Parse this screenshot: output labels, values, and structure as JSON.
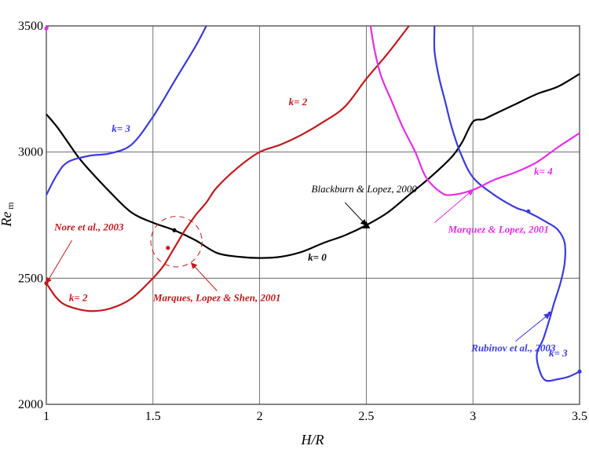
{
  "chart_data": {
    "type": "line",
    "xlabel": "H/R",
    "ylabel": "Re",
    "ylabel_sub": "m",
    "xlim": [
      1,
      3.5
    ],
    "ylim": [
      2000,
      3500
    ],
    "xticks": [
      "1",
      "1.5",
      "2",
      "2.5",
      "3",
      "3.5"
    ],
    "yticks": [
      "2000",
      "2500",
      "3000",
      "3500"
    ],
    "grid": true,
    "series": [
      {
        "name": "k=0",
        "color": "#000000",
        "points": [
          [
            1.0,
            3150
          ],
          [
            1.05,
            3100
          ],
          [
            1.1,
            3040
          ],
          [
            1.15,
            2980
          ],
          [
            1.2,
            2930
          ],
          [
            1.3,
            2840
          ],
          [
            1.4,
            2760
          ],
          [
            1.5,
            2720
          ],
          [
            1.6,
            2690
          ],
          [
            1.7,
            2650
          ],
          [
            1.8,
            2600
          ],
          [
            1.9,
            2585
          ],
          [
            2.0,
            2580
          ],
          [
            2.1,
            2585
          ],
          [
            2.2,
            2605
          ],
          [
            2.3,
            2640
          ],
          [
            2.4,
            2670
          ],
          [
            2.5,
            2710
          ],
          [
            2.6,
            2760
          ],
          [
            2.7,
            2830
          ],
          [
            2.8,
            2900
          ],
          [
            2.9,
            2980
          ],
          [
            2.95,
            3040
          ],
          [
            3.0,
            3120
          ],
          [
            3.05,
            3130
          ],
          [
            3.1,
            3150
          ],
          [
            3.2,
            3190
          ],
          [
            3.3,
            3230
          ],
          [
            3.4,
            3260
          ],
          [
            3.5,
            3310
          ]
        ]
      },
      {
        "name": "k=2",
        "color": "#c0191c",
        "points": [
          [
            1.0,
            2480
          ],
          [
            1.05,
            2420
          ],
          [
            1.1,
            2390
          ],
          [
            1.2,
            2370
          ],
          [
            1.3,
            2380
          ],
          [
            1.4,
            2420
          ],
          [
            1.5,
            2500
          ],
          [
            1.55,
            2550
          ],
          [
            1.6,
            2620
          ],
          [
            1.65,
            2690
          ],
          [
            1.7,
            2750
          ],
          [
            1.75,
            2800
          ],
          [
            1.8,
            2860
          ],
          [
            1.9,
            2940
          ],
          [
            2.0,
            3000
          ],
          [
            2.1,
            3030
          ],
          [
            2.2,
            3070
          ],
          [
            2.3,
            3120
          ],
          [
            2.4,
            3180
          ],
          [
            2.5,
            3290
          ],
          [
            2.6,
            3390
          ],
          [
            2.7,
            3500
          ]
        ]
      },
      {
        "name": "k=3",
        "color": "#3b3bdc",
        "points": [
          [
            1.0,
            2830
          ],
          [
            1.05,
            2910
          ],
          [
            1.1,
            2960
          ],
          [
            1.2,
            2985
          ],
          [
            1.3,
            2995
          ],
          [
            1.4,
            3030
          ],
          [
            1.5,
            3140
          ],
          [
            1.6,
            3280
          ],
          [
            1.7,
            3420
          ],
          [
            1.75,
            3500
          ]
        ]
      },
      {
        "name": "k=3",
        "color": "#3b3bdc",
        "points": [
          [
            2.82,
            3500
          ],
          [
            2.82,
            3400
          ],
          [
            2.84,
            3300
          ],
          [
            2.87,
            3200
          ],
          [
            2.9,
            3100
          ],
          [
            2.94,
            3000
          ],
          [
            3.0,
            2900
          ],
          [
            3.1,
            2830
          ],
          [
            3.2,
            2780
          ],
          [
            3.25,
            2765
          ],
          [
            3.35,
            2720
          ],
          [
            3.4,
            2690
          ],
          [
            3.43,
            2640
          ],
          [
            3.43,
            2560
          ],
          [
            3.41,
            2480
          ],
          [
            3.38,
            2400
          ],
          [
            3.36,
            2340
          ],
          [
            3.33,
            2260
          ],
          [
            3.3,
            2200
          ],
          [
            3.31,
            2140
          ],
          [
            3.34,
            2095
          ],
          [
            3.4,
            2100
          ],
          [
            3.45,
            2110
          ],
          [
            3.5,
            2130
          ]
        ]
      },
      {
        "name": "k=4",
        "color": "#e52ee5",
        "points": [
          [
            2.52,
            3500
          ],
          [
            2.54,
            3400
          ],
          [
            2.57,
            3300
          ],
          [
            2.62,
            3200
          ],
          [
            2.67,
            3100
          ],
          [
            2.73,
            3000
          ],
          [
            2.78,
            2900
          ],
          [
            2.85,
            2840
          ],
          [
            2.9,
            2830
          ],
          [
            3.0,
            2850
          ],
          [
            3.1,
            2890
          ],
          [
            3.2,
            2920
          ],
          [
            3.3,
            2960
          ],
          [
            3.4,
            3020
          ],
          [
            3.5,
            3075
          ]
        ]
      },
      {
        "name": "k=2",
        "color": "#e52ee5",
        "points": [
          [
            1.0,
            3490
          ],
          [
            1.01,
            3500
          ]
        ]
      }
    ],
    "markers": [
      {
        "shape": "dot",
        "x": 1.6,
        "y": 2690,
        "color": "#000000"
      },
      {
        "shape": "dot",
        "x": 1.57,
        "y": 2620,
        "color": "#c0191c"
      },
      {
        "shape": "triangle",
        "x": 2.5,
        "y": 2710,
        "color": "#000000"
      },
      {
        "shape": "dot",
        "x": 3.26,
        "y": 2765,
        "color": "#3b3bdc"
      },
      {
        "shape": "dot",
        "x": 3.36,
        "y": 2360,
        "color": "#3b3bdc"
      },
      {
        "shape": "dot",
        "x": 3.5,
        "y": 2130,
        "color": "#3b3bdc"
      },
      {
        "shape": "dot",
        "x": 1.0,
        "y": 2480,
        "color": "#c0191c"
      },
      {
        "shape": "dot",
        "x": 1.0,
        "y": 3490,
        "color": "#e52ee5"
      }
    ],
    "circle": {
      "x": 1.61,
      "y": 2645,
      "rx": 0.12,
      "ry": 100,
      "color": "#c0191c"
    },
    "annotations": [
      {
        "text": "k= 3",
        "x": 1.35,
        "y": 3080,
        "color": "#3b3bdc",
        "bold": true
      },
      {
        "text": "k= 2",
        "x": 2.18,
        "y": 3185,
        "color": "#c0191c",
        "bold": true
      },
      {
        "text": "k= 2",
        "x": 1.15,
        "y": 2410,
        "color": "#c0191c",
        "bold": true
      },
      {
        "text": "k= 0",
        "x": 2.27,
        "y": 2570,
        "color": "#000000",
        "bold": true
      },
      {
        "text": "k= 4",
        "x": 3.33,
        "y": 2910,
        "color": "#e52ee5",
        "bold": true
      },
      {
        "text": "k= 3",
        "x": 3.4,
        "y": 2190,
        "color": "#3b3bdc",
        "bold": true
      },
      {
        "text": "Blackburn & Lopez, 2000",
        "x": 2.49,
        "y": 2840,
        "color": "#000000",
        "bold": false,
        "arrow_to": [
          2.5,
          2710
        ],
        "arrow_from": [
          2.4,
          2800
        ]
      },
      {
        "text": "Marquez & Lopez, 2001",
        "x": 3.12,
        "y": 2680,
        "color": "#e52ee5",
        "bold": true,
        "arrow_to": [
          3.0,
          2850
        ],
        "arrow_from": [
          2.82,
          2720
        ]
      },
      {
        "text": "Nore et al., 2003",
        "x": 1.2,
        "y": 2690,
        "color": "#c0191c",
        "bold": true,
        "arrow_to": [
          1.0,
          2480
        ],
        "arrow_from": [
          1.12,
          2650
        ]
      },
      {
        "text": "Marques, Lopez & Shen, 2001",
        "x": 1.8,
        "y": 2410,
        "color": "#c0191c",
        "bold": true,
        "arrow_to": [
          1.68,
          2560
        ],
        "arrow_from": [
          1.8,
          2450
        ]
      },
      {
        "text": "Rubinov et al., 2003",
        "x": 3.19,
        "y": 2210,
        "color": "#3b3bdc",
        "bold": true,
        "arrow_to": [
          3.36,
          2360
        ],
        "arrow_from": [
          3.2,
          2250
        ]
      }
    ]
  }
}
